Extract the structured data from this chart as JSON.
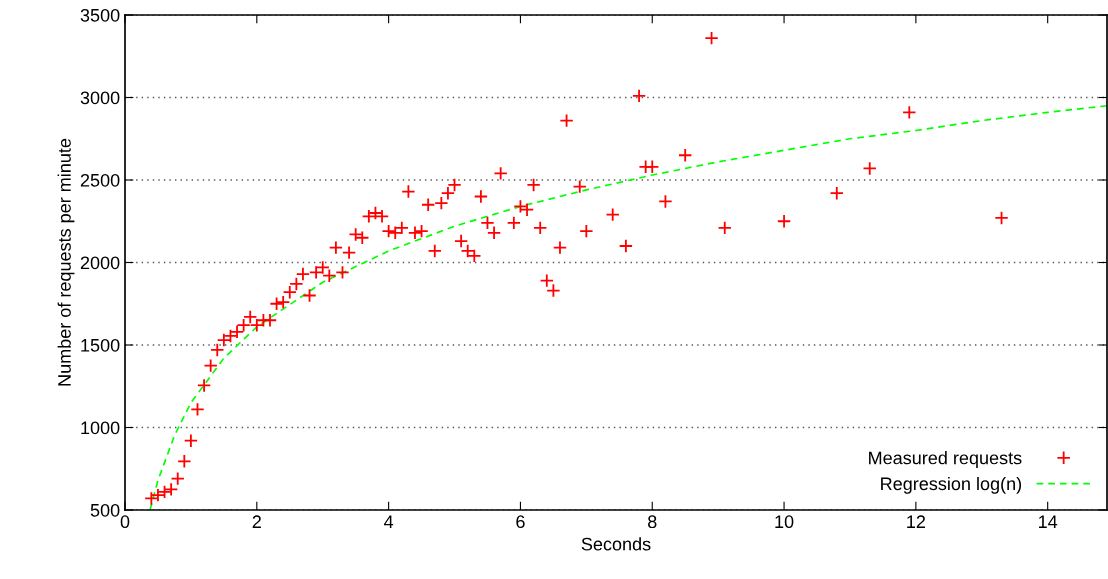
{
  "chart_data": {
    "type": "scatter",
    "xlabel": "Seconds",
    "ylabel": "Number of requests per minute",
    "xlim": [
      0,
      14.9
    ],
    "xticks": [
      0,
      2,
      4,
      6,
      8,
      10,
      12,
      14
    ],
    "ylim": [
      500,
      3500
    ],
    "yticks": [
      500,
      1000,
      1500,
      2000,
      2500,
      3000,
      3500
    ],
    "grid": "y",
    "legend": "bottom right",
    "series": [
      {
        "name": "Measured requests",
        "color": "#ff0000",
        "marker": "cross",
        "x": [
          0.4,
          0.5,
          0.6,
          0.7,
          0.8,
          0.9,
          1.0,
          1.1,
          1.2,
          1.3,
          1.4,
          1.5,
          1.6,
          1.7,
          1.8,
          1.9,
          2.0,
          2.1,
          2.2,
          2.3,
          2.4,
          2.5,
          2.6,
          2.7,
          2.8,
          2.9,
          3.0,
          3.1,
          3.2,
          3.3,
          3.4,
          3.5,
          3.6,
          3.7,
          3.8,
          3.9,
          4.0,
          4.1,
          4.2,
          4.3,
          4.4,
          4.5,
          4.6,
          4.7,
          4.8,
          4.9,
          5.0,
          5.1,
          5.2,
          5.3,
          5.4,
          5.5,
          5.6,
          5.7,
          5.9,
          6.0,
          6.1,
          6.2,
          6.3,
          6.4,
          6.5,
          6.6,
          6.7,
          6.9,
          7.0,
          7.4,
          7.6,
          7.8,
          7.9,
          8.0,
          8.2,
          8.5,
          8.9,
          9.1,
          10.0,
          10.8,
          11.3,
          11.9,
          13.3
        ],
        "values": [
          570,
          590,
          610,
          625,
          690,
          795,
          920,
          1110,
          1255,
          1375,
          1470,
          1530,
          1555,
          1580,
          1620,
          1670,
          1620,
          1650,
          1650,
          1750,
          1760,
          1820,
          1870,
          1930,
          1800,
          1940,
          1970,
          1920,
          2090,
          1940,
          2060,
          2170,
          2150,
          2280,
          2300,
          2280,
          2190,
          2180,
          2210,
          2430,
          2180,
          2190,
          2350,
          2070,
          2360,
          2420,
          2470,
          2130,
          2070,
          2040,
          2400,
          2240,
          2180,
          2540,
          2240,
          2340,
          2320,
          2470,
          2210,
          1890,
          1830,
          2090,
          2860,
          2460,
          2190,
          2290,
          2100,
          3010,
          2580,
          2580,
          2370,
          2650,
          3360,
          2210,
          2250,
          2420,
          2570,
          2910,
          2270
        ]
      },
      {
        "name": "Regression log(n)",
        "type": "line",
        "color": "#00ff00",
        "line_style": "dashed",
        "marker": "none",
        "x": [
          0.38,
          0.5,
          0.75,
          1,
          1.5,
          2,
          3,
          4,
          5,
          6,
          7,
          8,
          9,
          10,
          11,
          12,
          13,
          14,
          14.9
        ],
        "values": [
          500,
          680,
          950,
          1150,
          1420,
          1610,
          1880,
          2070,
          2220,
          2340,
          2440,
          2530,
          2610,
          2680,
          2750,
          2800,
          2860,
          2910,
          2950
        ]
      }
    ]
  }
}
